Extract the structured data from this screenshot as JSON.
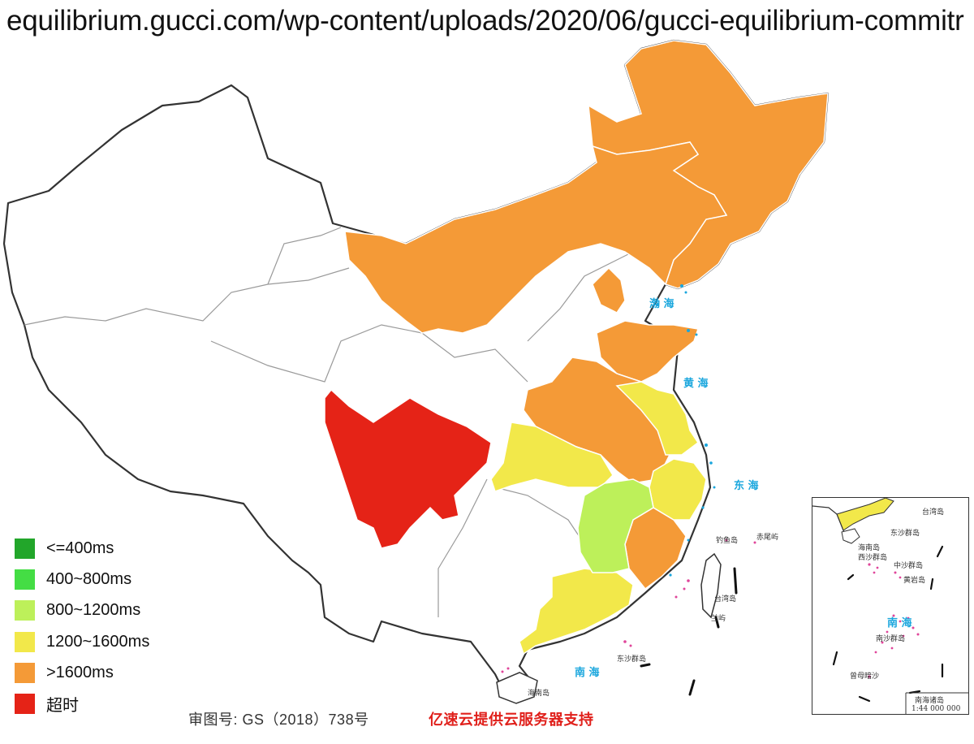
{
  "browser": {
    "url_text": "equilibrium.gucci.com/wp-content/uploads/2020/06/gucci-equilibrium-commitr"
  },
  "legend": {
    "items": [
      {
        "label": "<=400ms",
        "color": "#22a62a"
      },
      {
        "label": "400~800ms",
        "color": "#44dd44"
      },
      {
        "label": "800~1200ms",
        "color": "#bdf05a"
      },
      {
        "label": "1200~1600ms",
        "color": "#f2e84a"
      },
      {
        "label": ">1600ms",
        "color": "#f49a37"
      },
      {
        "label": "超时",
        "color": "#e52317"
      }
    ]
  },
  "regions": {
    "heilongjiang_jilin_liaoning": {
      "latency_class": ">1600ms",
      "color": "#f49a37"
    },
    "inner_mongolia": {
      "latency_class": ">1600ms",
      "color": "#f49a37"
    },
    "hebei_beijing": {
      "latency_class": ">1600ms",
      "color": "#f49a37"
    },
    "shandong": {
      "latency_class": ">1600ms",
      "color": "#f49a37"
    },
    "henan": {
      "latency_class": ">1600ms",
      "color": "#f49a37"
    },
    "hubei_anhui_west": {
      "latency_class": ">1600ms",
      "color": "#f49a37"
    },
    "fujian": {
      "latency_class": ">1600ms",
      "color": "#f49a37"
    },
    "sichuan": {
      "latency_class": "超时",
      "color": "#e52317"
    },
    "shaanxi_chongqing": {
      "latency_class": "1200~1600ms",
      "color": "#f2e84a"
    },
    "jiangsu": {
      "latency_class": "1200~1600ms",
      "color": "#f2e84a"
    },
    "zhejiang": {
      "latency_class": "1200~1600ms",
      "color": "#f2e84a"
    },
    "guangdong": {
      "latency_class": "1200~1600ms",
      "color": "#f2e84a"
    },
    "jiangxi": {
      "latency_class": "800~1200ms",
      "color": "#bdf05a"
    }
  },
  "map_labels": {
    "bohai": "渤 海",
    "yellow_sea": "黄 海",
    "east_sea": "东 海",
    "south_sea": "南 海",
    "taiwan": "台湾岛",
    "hainan": "海南岛",
    "diaoyu": "钓鱼岛",
    "chiwei": "赤尾屿",
    "dongsha": "东沙群岛",
    "lanyu": "兰屿"
  },
  "inset": {
    "labels": {
      "taiwan": "台湾岛",
      "dongsha": "东沙群岛",
      "hainan": "海南岛",
      "xisha": "西沙群岛",
      "zhongsha": "中沙群岛",
      "huangyan": "黄岩岛",
      "nansha": "南沙群岛",
      "zengmu": "曾母暗沙",
      "sea": "南 海"
    },
    "footer": "南海诸岛",
    "scale": "1:44 000 000"
  },
  "footer": {
    "approval": "审图号: GS（2018）738号",
    "credit": "亿速云提供云服务器支持"
  }
}
